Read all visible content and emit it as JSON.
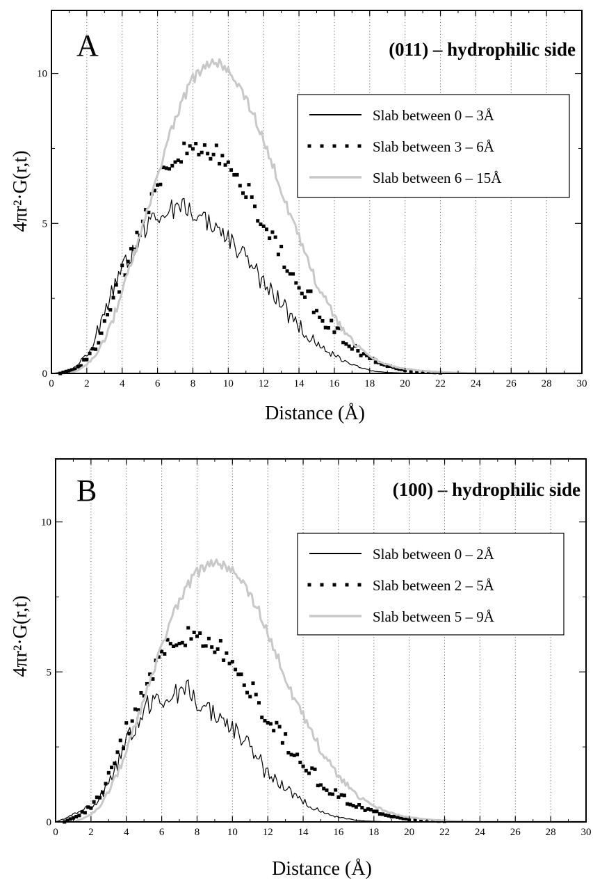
{
  "chart_data": [
    {
      "type": "line",
      "panel_label": "A",
      "title": "(011) – hydrophilic side",
      "xlabel": "Distance (Å)",
      "ylabel": "4πr²·G(r,t)",
      "xlim": [
        0,
        30
      ],
      "ylim": [
        0,
        12.1
      ],
      "x_ticks": [
        0,
        2,
        4,
        6,
        8,
        10,
        12,
        14,
        16,
        18,
        20,
        22,
        24,
        26,
        28,
        30
      ],
      "y_ticks": [
        0,
        5,
        10
      ],
      "grid": "vertical dotted lines at every 2 Å",
      "legend_position": "top-right",
      "series": [
        {
          "name": "Slab between 0 – 3Å",
          "style": "solid-black",
          "color": "#000000",
          "x": [
            0,
            0.5,
            1,
            1.5,
            2,
            2.5,
            3,
            3.5,
            4,
            4.5,
            5,
            5.5,
            6,
            6.5,
            7,
            7.5,
            8,
            8.5,
            9,
            9.5,
            10,
            10.5,
            11,
            11.5,
            12,
            12.5,
            13,
            13.5,
            14,
            14.5,
            15,
            15.5,
            16,
            16.5,
            17,
            17.5,
            18,
            18.5,
            19,
            19.5,
            20,
            21,
            22,
            24,
            26,
            28,
            30
          ],
          "y": [
            0,
            0.03,
            0.1,
            0.3,
            0.6,
            1.2,
            2.0,
            2.8,
            3.4,
            4.0,
            4.6,
            5.0,
            5.3,
            5.4,
            5.5,
            5.6,
            5.4,
            5.2,
            5.0,
            4.8,
            4.5,
            4.1,
            3.8,
            3.4,
            3.0,
            2.6,
            2.3,
            1.9,
            1.6,
            1.3,
            1.0,
            0.8,
            0.6,
            0.4,
            0.3,
            0.2,
            0.1,
            0.06,
            0.03,
            0.02,
            0.01,
            0,
            0,
            0,
            0,
            0,
            0
          ]
        },
        {
          "name": "Slab between 3 – 6Å",
          "style": "dotted-black",
          "color": "#000000",
          "x": [
            0.5,
            1,
            1.5,
            2,
            2.5,
            3,
            3.5,
            4,
            4.5,
            5,
            5.5,
            6,
            6.5,
            7,
            7.5,
            8,
            8.5,
            9,
            9.5,
            10,
            10.5,
            11,
            11.5,
            12,
            12.5,
            13,
            13.5,
            14,
            14.5,
            15,
            15.5,
            16,
            16.5,
            17,
            17.5,
            18,
            18.5,
            19,
            19.5,
            20,
            21,
            22,
            24,
            26,
            28,
            30
          ],
          "y": [
            0,
            0.1,
            0.2,
            0.5,
            0.9,
            1.6,
            2.4,
            3.3,
            4.1,
            4.8,
            5.6,
            6.2,
            6.8,
            7.2,
            7.4,
            7.5,
            7.6,
            7.4,
            7.2,
            7.0,
            6.6,
            6.2,
            5.6,
            5.1,
            4.5,
            4.0,
            3.4,
            2.9,
            2.5,
            2.2,
            1.8,
            1.5,
            1.2,
            0.9,
            0.7,
            0.5,
            0.35,
            0.25,
            0.15,
            0.1,
            0.05,
            0.02,
            0,
            0,
            0,
            0
          ]
        },
        {
          "name": "Slab between 6 – 15Å",
          "style": "solid-gray",
          "color": "#c8c8c8",
          "x": [
            1,
            1.5,
            2,
            2.5,
            3,
            3.5,
            4,
            4.5,
            5,
            5.5,
            6,
            6.5,
            7,
            7.5,
            8,
            8.5,
            9,
            9.5,
            10,
            10.5,
            11,
            11.5,
            12,
            12.5,
            13,
            13.5,
            14,
            14.5,
            15,
            15.5,
            16,
            16.5,
            17,
            17.5,
            18,
            18.5,
            19,
            19.5,
            20,
            21,
            22,
            23,
            24,
            26,
            28,
            30
          ],
          "y": [
            0,
            0.1,
            0.3,
            0.6,
            1.1,
            1.8,
            2.7,
            3.6,
            4.6,
            5.6,
            6.6,
            7.6,
            8.5,
            9.2,
            9.8,
            10.1,
            10.3,
            10.4,
            10.1,
            9.7,
            9.2,
            8.5,
            7.8,
            7.0,
            6.1,
            5.3,
            4.5,
            3.7,
            3.0,
            2.4,
            1.9,
            1.4,
            1.1,
            0.8,
            0.6,
            0.4,
            0.3,
            0.2,
            0.15,
            0.08,
            0.04,
            0.02,
            0,
            0,
            0,
            0
          ]
        }
      ]
    },
    {
      "type": "line",
      "panel_label": "B",
      "title": "(100) – hydrophilic side",
      "xlabel": "Distance (Å)",
      "ylabel": "4πr²·G(r,t)",
      "xlim": [
        0,
        30
      ],
      "ylim": [
        0,
        12.1
      ],
      "x_ticks": [
        0,
        2,
        4,
        6,
        8,
        10,
        12,
        14,
        16,
        18,
        20,
        22,
        24,
        26,
        28,
        30
      ],
      "y_ticks": [
        0,
        5,
        10
      ],
      "grid": "vertical dotted lines at every 2 Å",
      "legend_position": "top-right",
      "series": [
        {
          "name": "Slab between 0 – 2Å",
          "style": "solid-black",
          "color": "#000000",
          "x": [
            0,
            0.5,
            1,
            1.5,
            2,
            2.5,
            3,
            3.5,
            4,
            4.5,
            5,
            5.5,
            6,
            6.5,
            7,
            7.5,
            8,
            8.5,
            9,
            9.5,
            10,
            10.5,
            11,
            11.5,
            12,
            12.5,
            13,
            13.5,
            14,
            14.5,
            15,
            15.5,
            16,
            16.5,
            17,
            17.5,
            18,
            18.5,
            19,
            20,
            22,
            24,
            26,
            28,
            30
          ],
          "y": [
            0,
            0.1,
            0.25,
            0.4,
            0.5,
            0.8,
            1.3,
            1.9,
            2.6,
            3.2,
            3.8,
            4.0,
            4.1,
            4.2,
            4.3,
            4.5,
            4.0,
            3.8,
            3.6,
            3.4,
            3.1,
            2.8,
            2.4,
            2.0,
            1.6,
            1.3,
            1.1,
            0.9,
            0.7,
            0.5,
            0.35,
            0.25,
            0.15,
            0.1,
            0.06,
            0.03,
            0.02,
            0.01,
            0,
            0,
            0,
            0,
            0,
            0,
            0
          ]
        },
        {
          "name": "Slab between 2 – 5Å",
          "style": "dotted-black",
          "color": "#000000",
          "x": [
            0.5,
            1,
            1.5,
            2,
            2.5,
            3,
            3.5,
            4,
            4.5,
            5,
            5.5,
            6,
            6.5,
            7,
            7.5,
            8,
            8.5,
            9,
            9.5,
            10,
            10.5,
            11,
            11.5,
            12,
            12.5,
            13,
            13.5,
            14,
            14.5,
            15,
            15.5,
            16,
            16.5,
            17,
            17.5,
            18,
            18.5,
            19,
            19.5,
            20,
            21,
            22,
            24,
            26,
            28,
            30
          ],
          "y": [
            0,
            0.15,
            0.3,
            0.5,
            0.9,
            1.5,
            2.2,
            3.0,
            3.7,
            4.4,
            5.0,
            5.6,
            5.9,
            6.1,
            6.2,
            6.2,
            6.1,
            5.9,
            5.6,
            5.3,
            4.9,
            4.5,
            4.0,
            3.5,
            3.1,
            2.7,
            2.3,
            1.9,
            1.6,
            1.3,
            1.1,
            0.9,
            0.7,
            0.55,
            0.45,
            0.35,
            0.25,
            0.18,
            0.12,
            0.08,
            0.04,
            0.02,
            0,
            0,
            0,
            0
          ]
        },
        {
          "name": "Slab between 5 – 9Å",
          "style": "solid-gray",
          "color": "#c8c8c8",
          "x": [
            1,
            1.5,
            2,
            2.5,
            3,
            3.5,
            4,
            4.5,
            5,
            5.5,
            6,
            6.5,
            7,
            7.5,
            8,
            8.5,
            9,
            9.5,
            10,
            10.5,
            11,
            11.5,
            12,
            12.5,
            13,
            13.5,
            14,
            14.5,
            15,
            15.5,
            16,
            16.5,
            17,
            17.5,
            18,
            18.5,
            19,
            19.5,
            20,
            21,
            22,
            23,
            24,
            26,
            28,
            30
          ],
          "y": [
            0,
            0.1,
            0.25,
            0.5,
            1.0,
            1.6,
            2.3,
            3.2,
            4.1,
            5.0,
            5.9,
            6.7,
            7.4,
            7.9,
            8.3,
            8.5,
            8.6,
            8.6,
            8.4,
            8.1,
            7.6,
            7.0,
            6.3,
            5.6,
            4.8,
            4.1,
            3.5,
            2.9,
            2.4,
            1.9,
            1.5,
            1.2,
            0.9,
            0.7,
            0.55,
            0.4,
            0.3,
            0.2,
            0.15,
            0.08,
            0.04,
            0.02,
            0,
            0,
            0,
            0
          ]
        }
      ]
    }
  ]
}
